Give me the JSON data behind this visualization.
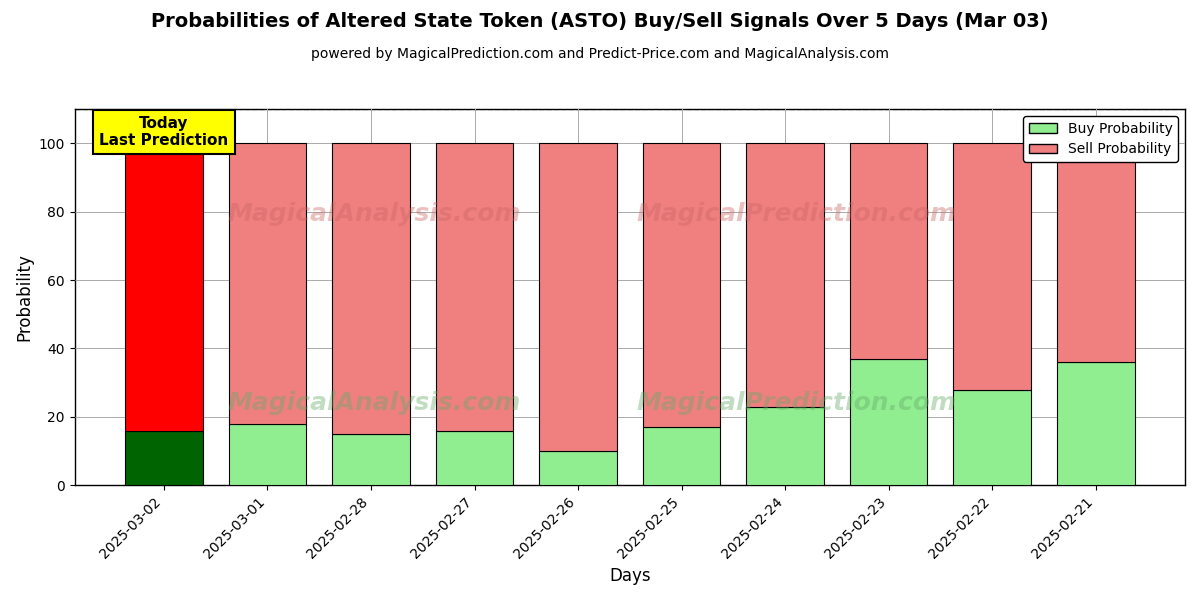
{
  "title": "Probabilities of Altered State Token (ASTO) Buy/Sell Signals Over 5 Days (Mar 03)",
  "subtitle": "powered by MagicalPrediction.com and Predict-Price.com and MagicalAnalysis.com",
  "xlabel": "Days",
  "ylabel": "Probability",
  "categories": [
    "2025-03-02",
    "2025-03-01",
    "2025-02-28",
    "2025-02-27",
    "2025-02-26",
    "2025-02-25",
    "2025-02-24",
    "2025-02-23",
    "2025-02-22",
    "2025-02-21"
  ],
  "buy_values": [
    16,
    18,
    15,
    16,
    10,
    17,
    23,
    37,
    28,
    36
  ],
  "sell_values": [
    84,
    82,
    85,
    84,
    90,
    83,
    77,
    63,
    72,
    64
  ],
  "buy_colors": [
    "#006400",
    "#90EE90",
    "#90EE90",
    "#90EE90",
    "#90EE90",
    "#90EE90",
    "#90EE90",
    "#90EE90",
    "#90EE90",
    "#90EE90"
  ],
  "sell_colors": [
    "#FF0000",
    "#F08080",
    "#F08080",
    "#F08080",
    "#F08080",
    "#F08080",
    "#F08080",
    "#F08080",
    "#F08080",
    "#F08080"
  ],
  "today_label": "Today\nLast Prediction",
  "today_index": 0,
  "ylim": [
    0,
    110
  ],
  "dashed_line_y": 110,
  "watermark_top_left": "MagicalAnalysis.com",
  "watermark_top_right": "MagicalPrediction.com",
  "watermark_bot_left": "MagicalAnalysis.com",
  "watermark_bot_right": "MagicalPrediction.com",
  "legend_buy": "Buy Probability",
  "legend_sell": "Sell Probability",
  "background_color": "#ffffff",
  "grid_color": "#aaaaaa"
}
